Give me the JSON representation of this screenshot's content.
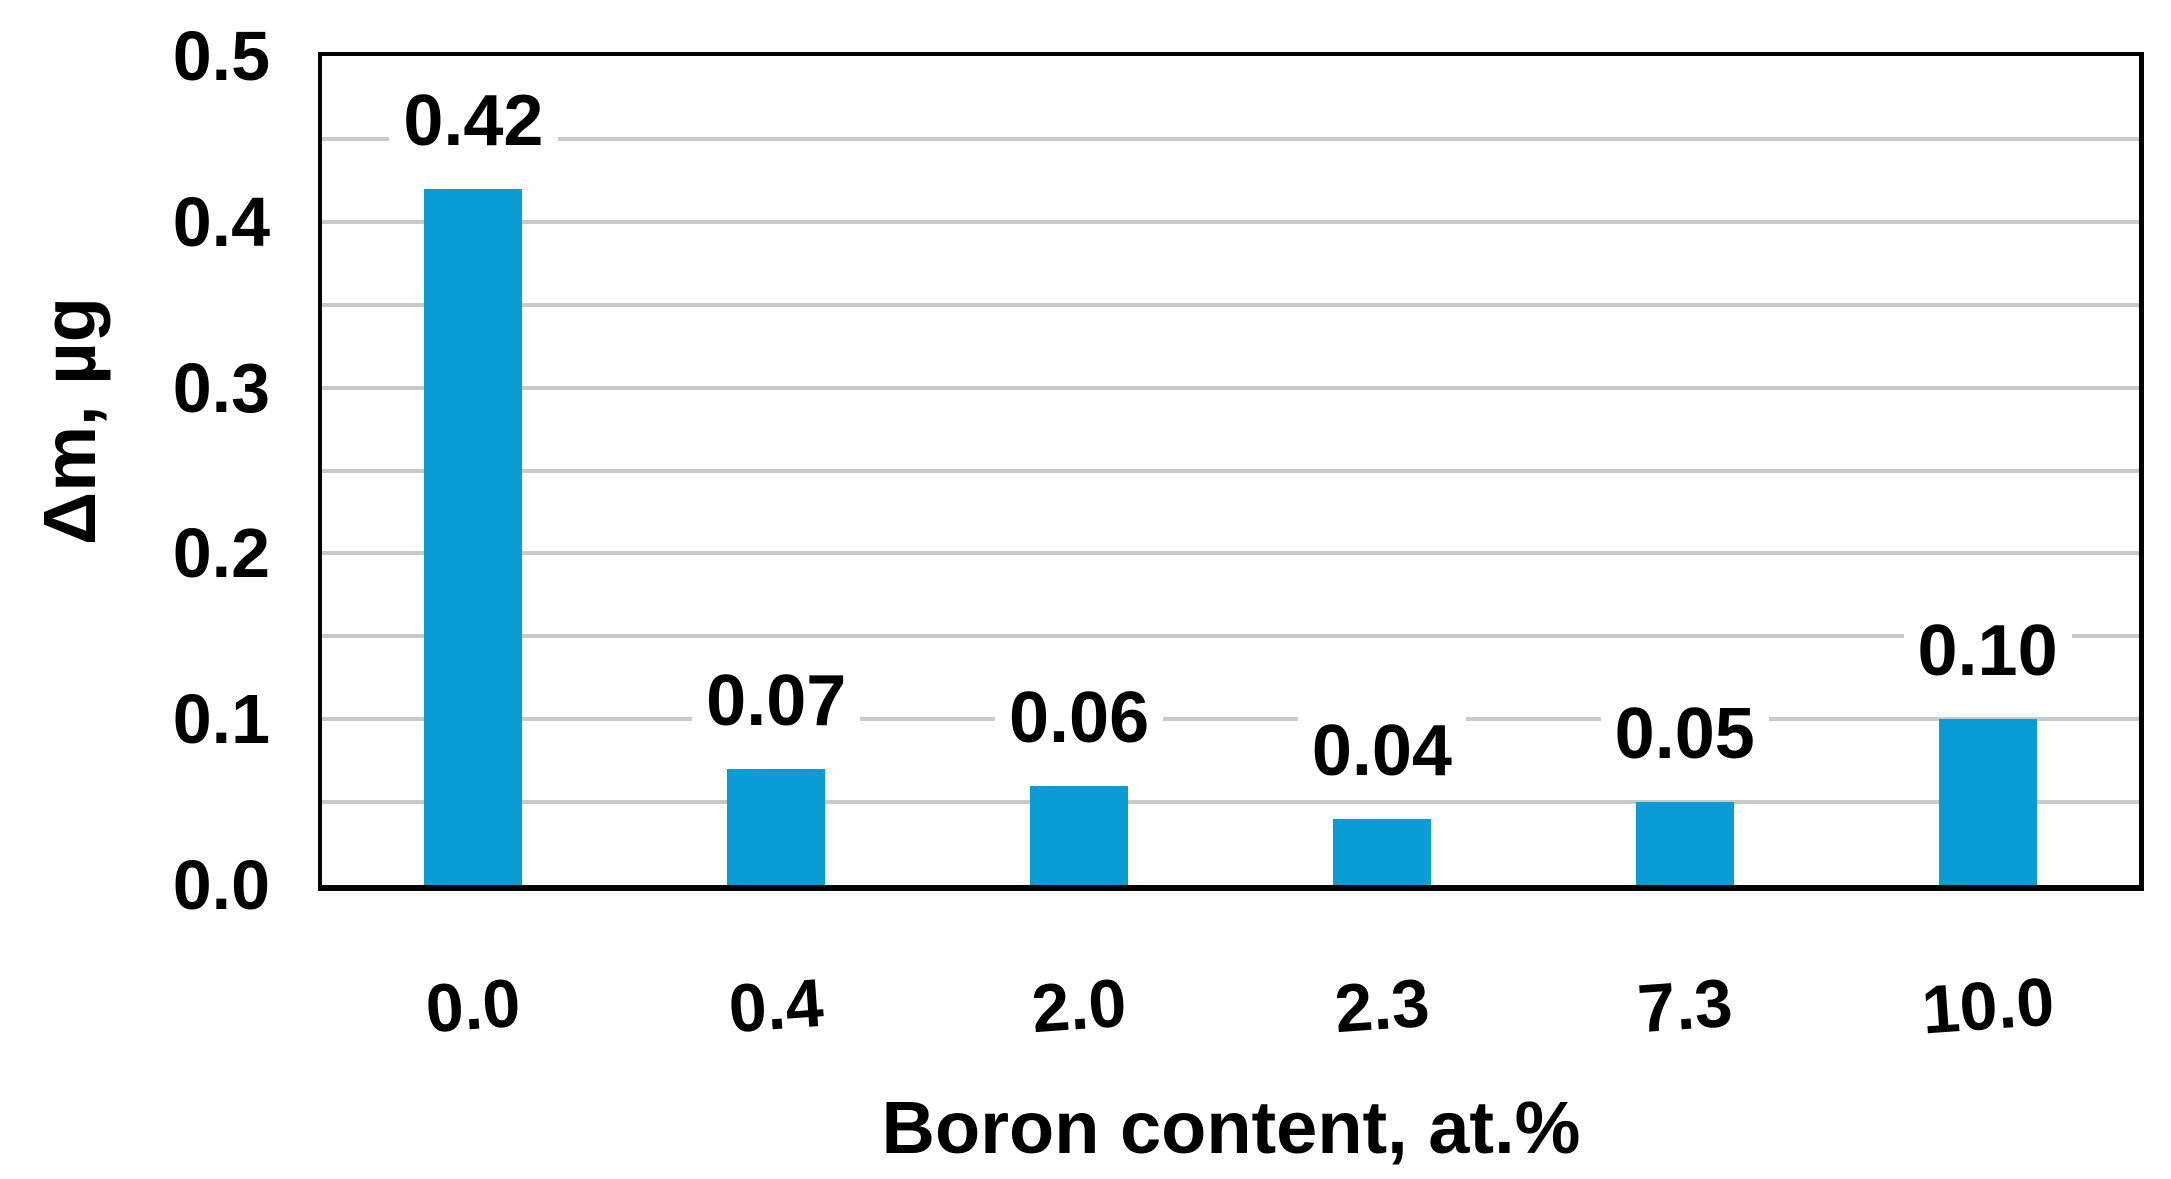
{
  "chart_data": {
    "type": "bar",
    "title": "",
    "xlabel": "Boron content, at.%",
    "ylabel": "Δm, µg",
    "categories": [
      "0.0",
      "0.4",
      "2.0",
      "2.3",
      "7.3",
      "10.0"
    ],
    "values": [
      0.42,
      0.07,
      0.06,
      0.04,
      0.05,
      0.1
    ],
    "value_labels": [
      "0.42",
      "0.07",
      "0.06",
      "0.04",
      "0.05",
      "0.10"
    ],
    "series_count": 1,
    "ylim": [
      0,
      0.5
    ],
    "y_ticks": [
      {
        "value": 0.0,
        "label": "0.0"
      },
      {
        "value": 0.1,
        "label": "0.1"
      },
      {
        "value": 0.2,
        "label": "0.2"
      },
      {
        "value": 0.3,
        "label": "0.3"
      },
      {
        "value": 0.4,
        "label": "0.4"
      },
      {
        "value": 0.5,
        "label": "0.5"
      }
    ],
    "gridline_interval": 0.05,
    "grid": "horizontal-minor",
    "legend": "none",
    "colors": {
      "bar": "#0A9CD4",
      "gridline": "#C9C9C9",
      "axis": "#000000",
      "text": "#000000",
      "label_background": "#FFFFFF",
      "background": "#FFFFFF"
    }
  }
}
